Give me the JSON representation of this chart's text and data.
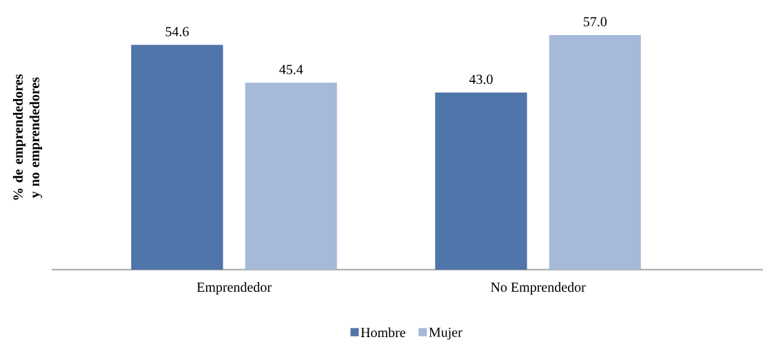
{
  "chart_data": {
    "type": "bar",
    "ylabel": "% de emprendedores y no emprendedores",
    "categories": [
      "Emprendedor",
      "No Emprendedor"
    ],
    "series": [
      {
        "name": "Hombre",
        "color": "#4f75aa",
        "values": [
          54.6,
          43.0
        ],
        "value_labels": [
          "54.6",
          "43.0"
        ]
      },
      {
        "name": "Mujer",
        "color": "#a7b9d9",
        "values": [
          45.4,
          57.0
        ],
        "value_labels": [
          "45.4",
          "57.0"
        ]
      }
    ],
    "legend": "bottom"
  }
}
